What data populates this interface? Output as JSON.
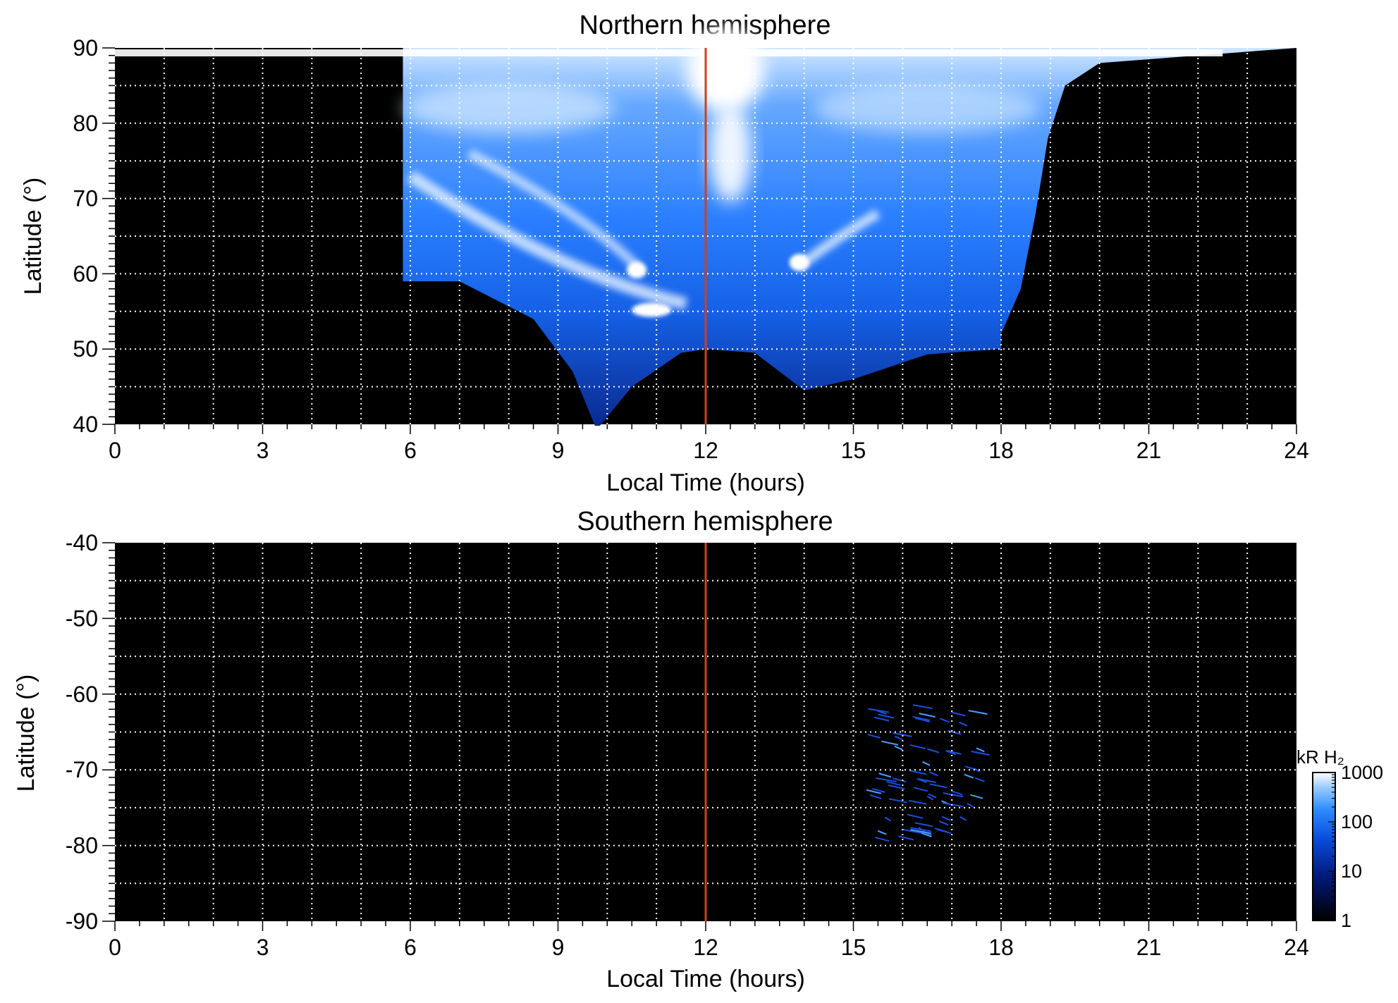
{
  "chart_data": [
    {
      "type": "heatmap",
      "title": "Northern hemisphere",
      "xlabel": "Local Time (hours)",
      "ylabel": "Latitude (°)",
      "xlim": [
        0,
        24
      ],
      "ylim": [
        40,
        90
      ],
      "xticks": [
        0,
        3,
        6,
        9,
        12,
        15,
        18,
        21,
        24
      ],
      "yticks": [
        40,
        50,
        60,
        70,
        80,
        90
      ],
      "x_gridlines": [
        1,
        2,
        3,
        4,
        5,
        6,
        7,
        8,
        9,
        10,
        11,
        13,
        14,
        15,
        16,
        17,
        18,
        19,
        20,
        21,
        22,
        23
      ],
      "y_gridlines": [
        45,
        50,
        55,
        60,
        65,
        70,
        75,
        80,
        85
      ],
      "grid": true,
      "marker_line_x": 12,
      "coverage_boundary": [
        [
          5.85,
          90
        ],
        [
          5.85,
          59
        ],
        [
          7,
          59
        ],
        [
          8.5,
          54
        ],
        [
          9.3,
          47
        ],
        [
          9.75,
          39.8
        ],
        [
          9.85,
          39.8
        ],
        [
          10.5,
          45
        ],
        [
          11.5,
          49.5
        ],
        [
          12,
          50
        ],
        [
          13,
          49.5
        ],
        [
          14,
          44.5
        ],
        [
          15,
          46
        ],
        [
          16.5,
          49.3
        ],
        [
          18,
          50
        ],
        [
          18,
          52
        ],
        [
          18.4,
          58
        ],
        [
          18.7,
          68
        ],
        [
          18.95,
          78
        ],
        [
          19.3,
          85
        ],
        [
          20,
          88
        ],
        [
          24,
          90
        ]
      ],
      "colorbar": {
        "label": "kR H₂",
        "scale": "log",
        "ticks": [
          "1",
          "10",
          "100",
          "1000"
        ],
        "range": [
          1,
          1000
        ]
      },
      "features": [
        {
          "label": "",
          "x": 10.9,
          "y": 55.2,
          "intensity": "1000+"
        },
        {
          "label": "",
          "x": 10.6,
          "y": 60.5,
          "intensity": "1000+"
        },
        {
          "label": "",
          "x": 13.9,
          "y": 61.5,
          "intensity": "1000+"
        },
        {
          "label": "",
          "x": 12.4,
          "y": 85,
          "intensity": "1000+"
        }
      ]
    },
    {
      "type": "heatmap",
      "title": "Southern hemisphere",
      "xlabel": "Local Time (hours)",
      "ylabel": "Latitude (°)",
      "xlim": [
        0,
        24
      ],
      "ylim": [
        -90,
        -40
      ],
      "xticks": [
        0,
        3,
        6,
        9,
        12,
        15,
        18,
        21,
        24
      ],
      "yticks": [
        -40,
        -50,
        -60,
        -70,
        -80,
        -90
      ],
      "x_gridlines": [
        1,
        2,
        3,
        4,
        5,
        6,
        7,
        8,
        9,
        10,
        11,
        13,
        14,
        15,
        16,
        17,
        18,
        19,
        20,
        21,
        22,
        23
      ],
      "y_gridlines": [
        -45,
        -50,
        -55,
        -60,
        -65,
        -70,
        -75,
        -80,
        -85
      ],
      "grid": true,
      "marker_line_x": 12,
      "features": [
        {
          "label": "",
          "x_range": [
            15.4,
            17.6
          ],
          "y_range": [
            -79.5,
            -61
          ],
          "intensity": "10-100"
        }
      ]
    }
  ],
  "colors": {
    "marker_line": "#d0401a",
    "background": "#000000",
    "grid": "#ffffff",
    "emission": "#1e7aff"
  }
}
